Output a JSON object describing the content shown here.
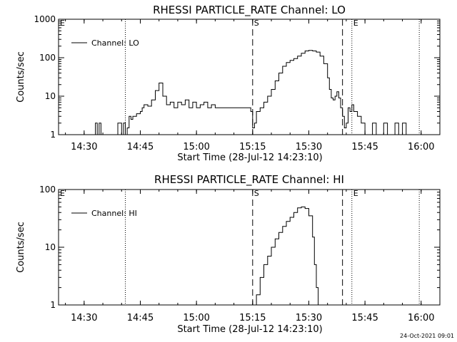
{
  "timestamp": "24-Oct-2021 09:01",
  "chart_data": [
    {
      "type": "line",
      "title": "RHESSI PARTICLE_RATE Channel: LO",
      "xlabel": "Start Time (28-Jul-12 14:23:10)",
      "ylabel": "Counts/sec",
      "yscale": "log",
      "xlim": [
        "14:23:10",
        "16:05:00"
      ],
      "ylim": [
        1,
        1000
      ],
      "x_ticks": [
        "14:30",
        "14:45",
        "15:00",
        "15:15",
        "15:30",
        "15:45",
        "16:00"
      ],
      "y_ticks": [
        "1",
        "10",
        "100",
        "1000"
      ],
      "legend": "Channel: LO",
      "legend_position": "top-left",
      "markers": [
        {
          "label": "E",
          "time": "14:23:10",
          "style": "dotted"
        },
        {
          "label": "",
          "time": "14:41:00",
          "style": "dotted"
        },
        {
          "label": "S",
          "time": "15:15:00",
          "style": "dashed"
        },
        {
          "label": "",
          "time": "15:39:00",
          "style": "dashed"
        },
        {
          "label": "E",
          "time": "15:41:30",
          "style": "dotted"
        },
        {
          "label": "",
          "time": "15:59:30",
          "style": "dotted"
        }
      ],
      "series": [
        {
          "name": "Channel: LO",
          "x": [
            "14:32:30",
            "14:33:00",
            "14:33:30",
            "14:34:00",
            "14:34:30",
            "14:35:00",
            "14:36:00",
            "14:37:00",
            "14:38:00",
            "14:39:00",
            "14:40:00",
            "14:40:30",
            "14:41:00",
            "14:41:30",
            "14:42:00",
            "14:42:30",
            "14:43:00",
            "14:44:00",
            "14:45:00",
            "14:45:30",
            "14:46:00",
            "14:47:00",
            "14:48:00",
            "14:49:00",
            "14:50:00",
            "14:51:00",
            "14:52:00",
            "14:53:00",
            "14:54:00",
            "14:55:00",
            "14:56:00",
            "14:57:00",
            "14:58:00",
            "14:59:00",
            "15:00:00",
            "15:01:00",
            "15:02:00",
            "15:03:00",
            "15:04:00",
            "15:05:00",
            "15:06:00",
            "15:07:00",
            "15:08:00",
            "15:09:00",
            "15:10:00",
            "15:11:00",
            "15:12:00",
            "15:13:00",
            "15:14:00",
            "15:14:30",
            "15:15:00",
            "15:15:30",
            "15:16:00",
            "15:17:00",
            "15:18:00",
            "15:19:00",
            "15:20:00",
            "15:21:00",
            "15:22:00",
            "15:23:00",
            "15:24:00",
            "15:25:00",
            "15:26:00",
            "15:27:00",
            "15:28:00",
            "15:29:00",
            "15:30:00",
            "15:31:00",
            "15:32:00",
            "15:33:00",
            "15:34:00",
            "15:35:00",
            "15:35:30",
            "15:36:00",
            "15:36:30",
            "15:37:00",
            "15:37:30",
            "15:38:00",
            "15:38:30",
            "15:39:00",
            "15:39:30",
            "15:40:00",
            "15:40:30",
            "15:41:00",
            "15:41:30",
            "15:42:00",
            "15:42:30",
            "15:43:00",
            "15:44:00",
            "15:45:00",
            "15:46:00",
            "15:47:00",
            "15:48:00",
            "15:49:00",
            "15:50:00",
            "15:51:00",
            "15:52:00",
            "15:53:00",
            "15:54:00",
            "15:55:00",
            "15:56:00"
          ],
          "values": [
            1,
            2,
            1,
            2,
            1,
            1,
            1,
            1,
            1,
            2,
            1,
            2,
            1,
            1.5,
            3,
            2.5,
            3,
            3.5,
            4,
            5,
            6,
            5.5,
            8,
            14,
            22,
            10,
            6,
            7,
            5,
            7,
            6,
            8,
            5,
            7,
            5,
            6,
            7,
            5,
            6,
            5,
            5,
            5,
            5,
            5,
            5,
            5,
            5,
            5,
            5,
            4,
            1.5,
            2,
            4,
            5,
            7,
            10,
            15,
            25,
            40,
            60,
            75,
            85,
            95,
            110,
            130,
            150,
            155,
            150,
            140,
            110,
            70,
            30,
            15,
            9,
            8,
            10,
            13,
            9,
            5,
            3,
            1.5,
            2,
            5,
            4,
            6,
            4,
            4,
            3,
            2,
            1,
            1,
            2,
            1,
            1,
            2,
            1,
            1,
            2,
            1,
            2,
            1
          ]
        }
      ]
    },
    {
      "type": "line",
      "title": "RHESSI PARTICLE_RATE Channel: HI",
      "xlabel": "Start Time (28-Jul-12 14:23:10)",
      "ylabel": "Counts/sec",
      "yscale": "log",
      "xlim": [
        "14:23:10",
        "16:05:00"
      ],
      "ylim": [
        1,
        100
      ],
      "x_ticks": [
        "14:30",
        "14:45",
        "15:00",
        "15:15",
        "15:30",
        "15:45",
        "16:00"
      ],
      "y_ticks": [
        "1",
        "10",
        "100"
      ],
      "legend": "Channel: HI",
      "legend_position": "top-left",
      "markers": [
        {
          "label": "E",
          "time": "14:23:10",
          "style": "dotted"
        },
        {
          "label": "",
          "time": "14:41:00",
          "style": "dotted"
        },
        {
          "label": "S",
          "time": "15:15:00",
          "style": "dashed"
        },
        {
          "label": "",
          "time": "15:39:00",
          "style": "dashed"
        },
        {
          "label": "E",
          "time": "15:41:30",
          "style": "dotted"
        },
        {
          "label": "",
          "time": "15:59:30",
          "style": "dotted"
        }
      ],
      "series": [
        {
          "name": "Channel: HI",
          "x": [
            "15:15:30",
            "15:16:00",
            "15:17:00",
            "15:18:00",
            "15:19:00",
            "15:20:00",
            "15:21:00",
            "15:22:00",
            "15:23:00",
            "15:24:00",
            "15:25:00",
            "15:26:00",
            "15:27:00",
            "15:28:00",
            "15:29:00",
            "15:30:00",
            "15:31:00",
            "15:31:30",
            "15:32:00",
            "15:32:30"
          ],
          "values": [
            1,
            1.5,
            3,
            5,
            7,
            10,
            14,
            18,
            23,
            28,
            33,
            40,
            48,
            50,
            47,
            35,
            15,
            5,
            2,
            1
          ]
        }
      ]
    }
  ]
}
